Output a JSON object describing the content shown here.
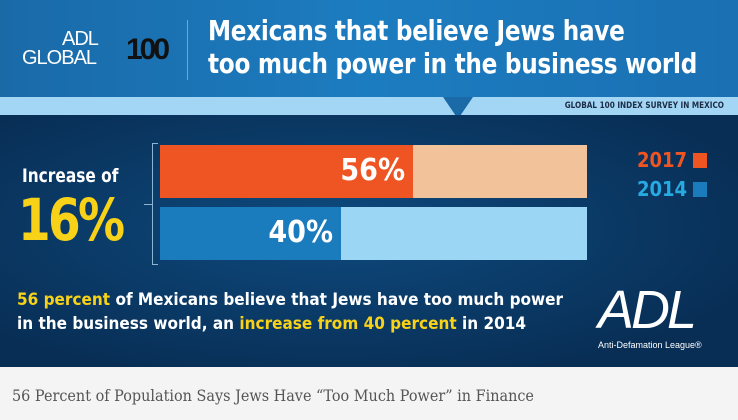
{
  "header": {
    "logo": {
      "adl": "ADL",
      "global": "GLOBAL",
      "hundred": "100"
    },
    "title_line1": "Mexicans that believe Jews have",
    "title_line2": "too much power in the business world",
    "subtitle": "GLOBAL 100 INDEX SURVEY IN MEXICO"
  },
  "highlight": {
    "label": "Increase of",
    "value": "16%"
  },
  "chart_data": {
    "type": "bar",
    "orientation": "horizontal",
    "categories": [
      "2017",
      "2014"
    ],
    "values": [
      56,
      40
    ],
    "data_labels": [
      "56%",
      "40%"
    ],
    "xlim": [
      0,
      100
    ],
    "colors": {
      "2017": "#ee5522",
      "2017_track": "#f2c29a",
      "2014": "#1a7bbd",
      "2014_track": "#9bd6f5"
    },
    "legend": [
      {
        "name": "2017",
        "color": "#ee5522"
      },
      {
        "name": "2014",
        "color": "#1a7bbd"
      }
    ],
    "legend_position": "right"
  },
  "paragraph": {
    "p1": "56 percent",
    "p2": " of Mexicans believe that Jews have too much power in the business world, an ",
    "p3": "increase from 40 percent",
    "p4": " in 2014"
  },
  "brand": {
    "logo": "ADL",
    "name": "Anti-Defamation League®"
  },
  "caption": "56 Percent of Population Says Jews Have “Too Much Power” in Finance"
}
